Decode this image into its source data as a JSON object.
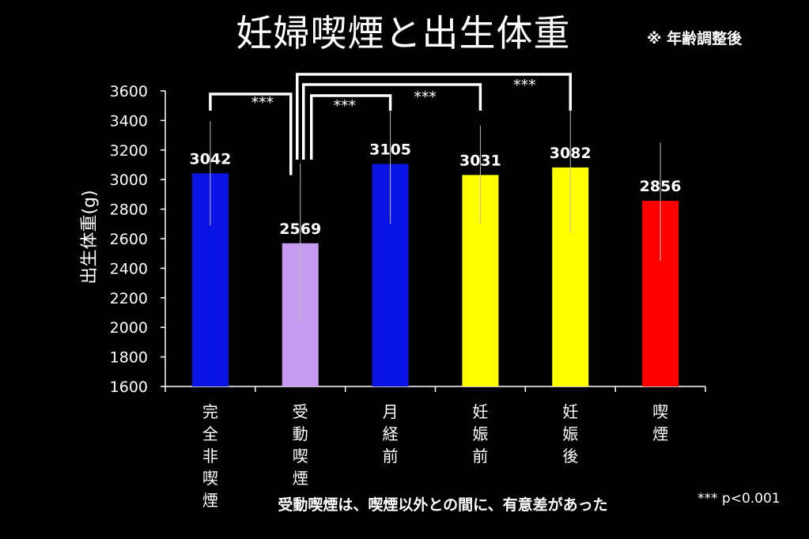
{
  "title": "妊婦喫煙と出生体重",
  "note": "※ 年齢調整後",
  "footnote": "受動喫煙は、喫煙以外との間に、有意差があった",
  "significance_legend": "*** p<0.001",
  "chart_data": {
    "type": "bar",
    "title": "妊婦喫煙と出生体重",
    "ylabel": "出生体重(g)",
    "xlabel": "",
    "ylim": [
      1600,
      3600
    ],
    "yticks": [
      1600,
      1800,
      2000,
      2200,
      2400,
      2600,
      2800,
      3000,
      3200,
      3400,
      3600
    ],
    "grid": false,
    "categories": [
      "完全非喫煙",
      "受動喫煙",
      "月経前",
      "妊娠前",
      "妊娠後",
      "喫煙"
    ],
    "values": [
      3042,
      2569,
      3105,
      3031,
      3082,
      2856
    ],
    "value_labels": [
      "3042",
      "2569",
      "3105",
      "3031",
      "3082",
      "2856"
    ],
    "error_bars": [
      {
        "low": 2690,
        "high": 3395
      },
      {
        "low": 2030,
        "high": 3110
      },
      {
        "low": 2700,
        "high": 3510
      },
      {
        "low": 2700,
        "high": 3365
      },
      {
        "low": 2640,
        "high": 3530
      },
      {
        "low": 2450,
        "high": 3250
      }
    ],
    "colors": [
      "#0a14e6",
      "#c59cf0",
      "#0a14e6",
      "#ffff00",
      "#ffff00",
      "#ff0000"
    ],
    "significance_brackets": [
      {
        "from": 0,
        "to": 1,
        "label": "***"
      },
      {
        "from": 1,
        "to": 2,
        "label": "***"
      },
      {
        "from": 1,
        "to": 3,
        "label": "***"
      },
      {
        "from": 1,
        "to": 4,
        "label": "***"
      }
    ]
  }
}
